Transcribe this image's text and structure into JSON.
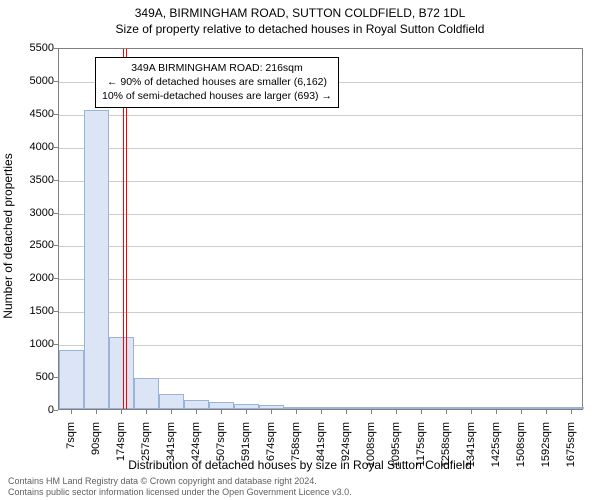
{
  "chart": {
    "type": "histogram",
    "title_main": "349A, BIRMINGHAM ROAD, SUTTON COLDFIELD, B72 1DL",
    "title_sub": "Size of property relative to detached houses in Royal Sutton Coldfield",
    "ylabel": "Number of detached properties",
    "xlabel": "Distribution of detached houses by size in Royal Sutton Coldfield",
    "background_color": "#ffffff",
    "grid_color": "#cccccc",
    "axis_color": "#808080",
    "bar_fill": "#dbe5f6",
    "bar_stroke": "#99b3d9",
    "ref_line_color": "#ff0000",
    "text_color": "#000000",
    "ylim": [
      0,
      5500
    ],
    "ytick_step": 500,
    "yticks": [
      0,
      500,
      1000,
      1500,
      2000,
      2500,
      3000,
      3500,
      4000,
      4500,
      5000,
      5500
    ],
    "x_categories": [
      "7sqm",
      "90sqm",
      "174sqm",
      "257sqm",
      "341sqm",
      "424sqm",
      "507sqm",
      "591sqm",
      "674sqm",
      "758sqm",
      "841sqm",
      "924sqm",
      "1008sqm",
      "1095sqm",
      "1175sqm",
      "1258sqm",
      "1341sqm",
      "1425sqm",
      "1508sqm",
      "1592sqm",
      "1675sqm"
    ],
    "values": [
      900,
      4550,
      1100,
      470,
      230,
      140,
      110,
      80,
      55,
      20,
      15,
      15,
      10,
      10,
      10,
      10,
      10,
      10,
      10,
      10,
      10
    ],
    "bar_relative_width": 0.98,
    "reference_value_sqm": 216,
    "x_min_sqm": 7,
    "x_max_sqm": 1675,
    "annotation": {
      "line1": "349A BIRMINGHAM ROAD: 216sqm",
      "line2": "← 90% of detached houses are smaller (6,162)",
      "line3": "10% of semi-detached houses are larger (693) →"
    },
    "footer_line1": "Contains HM Land Registry data © Crown copyright and database right 2024.",
    "footer_line2": "Contains public sector information licensed under the Open Government Licence v3.0."
  }
}
